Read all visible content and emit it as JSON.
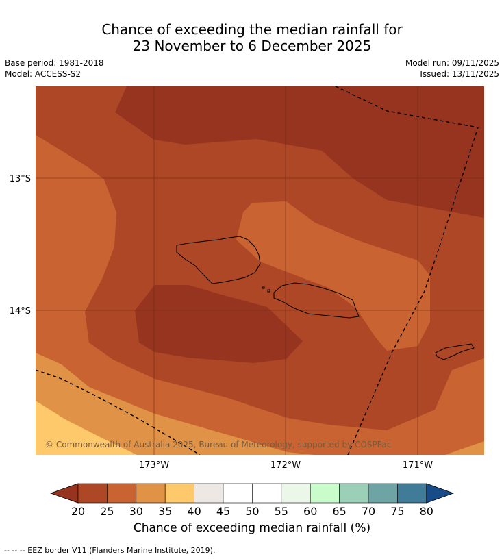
{
  "title": {
    "line1": "Chance of exceeding the median rainfall for",
    "line2": "23 November to 6 December 2025"
  },
  "meta": {
    "base_period": "Base period: 1981-2018",
    "model": "Model: ACCESS-S2",
    "model_run": "Model run: 09/11/2025",
    "issued": "Issued: 13/11/2025"
  },
  "map": {
    "lat_ticks": [
      "13°S",
      "14°S"
    ],
    "lon_ticks": [
      "173°W",
      "172°W",
      "171°W"
    ],
    "copyright": "© Commonwealth of Australia 2025, Bureau of Meteorology, supported by COSPPac",
    "colors": {
      "lt20": "#963420",
      "c20_25": "#ad4725",
      "c25_30": "#c96332",
      "c30_35": "#e09346",
      "c35_40": "#fec96a",
      "coast": "#000000",
      "gridline": "#6e2a12"
    }
  },
  "colorbar": {
    "ticks": [
      "20",
      "25",
      "30",
      "35",
      "40",
      "45",
      "50",
      "55",
      "60",
      "65",
      "70",
      "75",
      "80"
    ],
    "colors": [
      "#ad4725",
      "#c96332",
      "#e09346",
      "#fec96a",
      "#ede8e4",
      "#ffffff",
      "#ffffff",
      "#eaf7e9",
      "#c9fbcb",
      "#9bcfb8",
      "#6fa4a5",
      "#407b97"
    ],
    "under_color": "#963420",
    "over_color": "#174c89",
    "label": "Chance of exceeding median rainfall (%)"
  },
  "footnote": "--  --  -- EEZ border V11 (Flanders Marine Institute, 2019)."
}
